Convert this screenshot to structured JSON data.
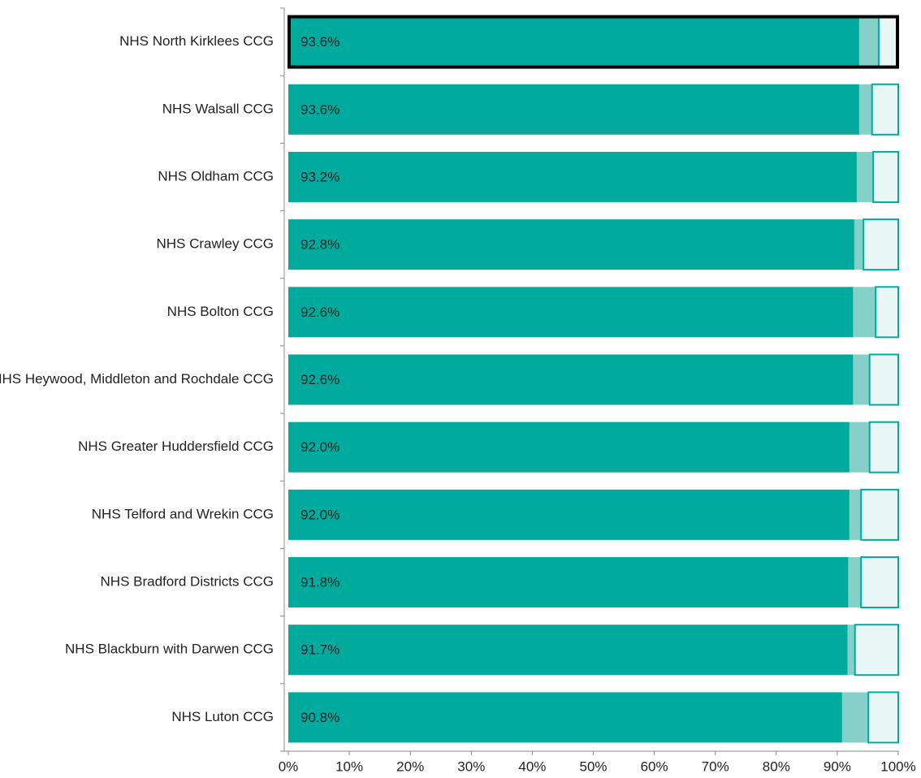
{
  "chart_data": {
    "type": "stacked-barh",
    "categories": [
      "NHS North Kirklees CCG",
      "NHS Walsall CCG",
      "NHS Oldham CCG",
      "NHS Crawley CCG",
      "NHS Bolton CCG",
      "NHS Heywood, Middleton and Rochdale CCG",
      "NHS Greater Huddersfield CCG",
      "NHS Telford and Wrekin CCG",
      "NHS Bradford Districts CCG",
      "NHS Blackburn with Darwen CCG",
      "NHS Luton CCG"
    ],
    "series": [
      {
        "color": "#00ab9e",
        "values": [
          93.6,
          93.6,
          93.2,
          92.8,
          92.6,
          92.6,
          92.0,
          92.0,
          91.8,
          91.7,
          90.8
        ],
        "value_labels": [
          "93.6%",
          "93.6%",
          "93.2%",
          "92.8%",
          "92.6%",
          "92.6%",
          "92.0%",
          "92.0%",
          "91.8%",
          "91.7%",
          "90.8%"
        ]
      },
      {
        "color": "#85d1c9",
        "values": [
          3.2,
          2.1,
          2.7,
          1.5,
          3.7,
          2.7,
          3.3,
          1.9,
          2.1,
          1.2,
          4.3
        ]
      },
      {
        "color": "#e8f6f5",
        "values": [
          3.2,
          4.3,
          4.1,
          5.7,
          3.7,
          4.7,
          4.7,
          6.1,
          6.1,
          7.1,
          4.9
        ]
      }
    ],
    "xlim": [
      0,
      100
    ],
    "xticks": [
      {
        "value": 0,
        "label": "0%"
      },
      {
        "value": 10,
        "label": "10%"
      },
      {
        "value": 20,
        "label": "20%"
      },
      {
        "value": 30,
        "label": "30%"
      },
      {
        "value": 40,
        "label": "40%"
      },
      {
        "value": 50,
        "label": "50%"
      },
      {
        "value": 60,
        "label": "60%"
      },
      {
        "value": 70,
        "label": "70%"
      },
      {
        "value": 80,
        "label": "80%"
      },
      {
        "value": 90,
        "label": "90%"
      },
      {
        "value": 100,
        "label": "100%"
      }
    ]
  }
}
